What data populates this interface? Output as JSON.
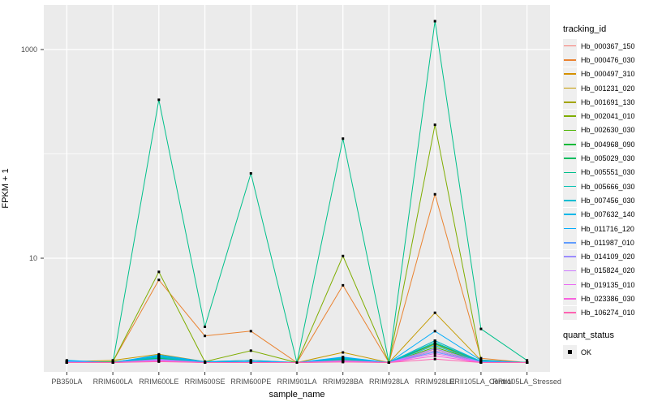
{
  "figure": {
    "panel_bg": "#ebebeb",
    "grid_color": "#ffffff",
    "tick_color": "#333333",
    "axis_text_color": "#4d4d4d",
    "point_color": "#000000"
  },
  "y_axis": {
    "title": "FPKM + 1",
    "tick_labels": [
      "1000",
      "10"
    ],
    "tick_values": [
      1000,
      10
    ],
    "minor_gridline_values": [
      100
    ]
  },
  "x_axis": {
    "title": "sample_name"
  },
  "legend": {
    "tracking_title": "tracking_id",
    "quant_title": "quant_status",
    "quant_items": [
      {
        "label": "OK"
      }
    ]
  },
  "chart_data": {
    "type": "line",
    "title": "",
    "xlabel": "sample_name",
    "ylabel": "FPKM + 1",
    "y_scale": "log10",
    "ylim": [
      1,
      2000
    ],
    "y_ticks_shown": [
      10,
      1000
    ],
    "grid": true,
    "legend_position": "right",
    "point_shape": "filled-square",
    "point_legend": {
      "title": "quant_status",
      "label": "OK"
    },
    "categories": [
      "PB350LA",
      "RRIM600LA",
      "RRIM600LE",
      "RRIM600SE",
      "RRIM600PE",
      "RRIM901LA",
      "RRIM928BA",
      "RRIM928LA",
      "RRIM928LE",
      "RRII105LA_Control",
      "RRII105LA_Stressed"
    ],
    "series": [
      {
        "name": "Hb_000367_150",
        "color": "#F8766D",
        "values": [
          1.02,
          1.0,
          1.1,
          1.0,
          1.01,
          1.0,
          1.06,
          1.0,
          1.35,
          1.02,
          1.0
        ]
      },
      {
        "name": "Hb_000476_030",
        "color": "#EA8331",
        "values": [
          1.0,
          1.02,
          6.2,
          1.8,
          2.0,
          1.0,
          5.5,
          1.0,
          41,
          1.1,
          1.0
        ]
      },
      {
        "name": "Hb_000497_310",
        "color": "#D59100",
        "values": [
          1.01,
          1.0,
          1.12,
          1.0,
          1.02,
          1.0,
          1.1,
          1.0,
          1.5,
          1.02,
          1.0
        ]
      },
      {
        "name": "Hb_001231_020",
        "color": "#C49A00",
        "values": [
          1.02,
          1.05,
          1.2,
          1.02,
          1.05,
          1.0,
          1.25,
          1.0,
          3.0,
          1.05,
          1.0
        ]
      },
      {
        "name": "Hb_001691_130",
        "color": "#A3A500",
        "values": [
          1.0,
          1.01,
          1.15,
          1.0,
          1.02,
          1.0,
          1.1,
          1.0,
          1.62,
          1.02,
          1.0
        ]
      },
      {
        "name": "Hb_002041_010",
        "color": "#7FAD00",
        "values": [
          1.0,
          1.02,
          7.4,
          1.02,
          1.3,
          1.0,
          10.5,
          1.0,
          190,
          1.06,
          1.0
        ]
      },
      {
        "name": "Hb_002630_030",
        "color": "#4CB400",
        "values": [
          1.01,
          1.02,
          1.1,
          1.0,
          1.01,
          1.0,
          1.06,
          1.0,
          1.4,
          1.02,
          1.0
        ]
      },
      {
        "name": "Hb_004968_090",
        "color": "#00BA38",
        "values": [
          1.0,
          1.0,
          1.06,
          1.0,
          1.0,
          1.0,
          1.04,
          1.0,
          1.3,
          1.01,
          1.0
        ]
      },
      {
        "name": "Hb_005029_030",
        "color": "#00BD5F",
        "values": [
          1.01,
          1.0,
          1.1,
          1.01,
          1.02,
          1.0,
          1.08,
          1.0,
          1.52,
          1.03,
          1.0
        ]
      },
      {
        "name": "Hb_005551_030",
        "color": "#00C08B",
        "values": [
          1.04,
          1.0,
          330,
          2.2,
          65,
          1.0,
          140,
          1.0,
          1870,
          2.1,
          1.05
        ]
      },
      {
        "name": "Hb_005666_030",
        "color": "#00C0B2",
        "values": [
          1.02,
          1.0,
          1.12,
          1.0,
          1.02,
          1.0,
          1.08,
          1.0,
          1.56,
          1.02,
          1.0
        ]
      },
      {
        "name": "Hb_007456_030",
        "color": "#00BDD2",
        "values": [
          1.03,
          1.0,
          1.14,
          1.0,
          1.01,
          1.0,
          1.1,
          1.0,
          1.46,
          1.01,
          1.0
        ]
      },
      {
        "name": "Hb_007632_140",
        "color": "#00B7E8",
        "values": [
          1.03,
          1.0,
          1.16,
          1.01,
          1.02,
          1.0,
          1.12,
          1.0,
          1.62,
          1.03,
          1.0
        ]
      },
      {
        "name": "Hb_011716_120",
        "color": "#00ACFC",
        "values": [
          1.05,
          1.0,
          1.18,
          1.02,
          1.05,
          1.0,
          1.13,
          1.0,
          2.0,
          1.05,
          1.0
        ]
      },
      {
        "name": "Hb_011987_010",
        "color": "#619CFF",
        "values": [
          1.02,
          1.0,
          1.08,
          1.0,
          1.01,
          1.0,
          1.05,
          1.0,
          1.26,
          1.01,
          1.0
        ]
      },
      {
        "name": "Hb_014109_020",
        "color": "#9C8DFF",
        "values": [
          1.01,
          1.0,
          1.06,
          1.0,
          1.0,
          1.0,
          1.04,
          1.0,
          1.36,
          1.01,
          1.0
        ]
      },
      {
        "name": "Hb_015824_020",
        "color": "#CD79FF",
        "values": [
          1.0,
          1.0,
          1.05,
          1.0,
          1.0,
          1.0,
          1.03,
          1.0,
          1.3,
          1.0,
          1.0
        ]
      },
      {
        "name": "Hb_019135_010",
        "color": "#EA69F2",
        "values": [
          1.0,
          1.0,
          1.04,
          1.0,
          1.0,
          1.0,
          1.03,
          1.0,
          1.22,
          1.0,
          1.0
        ]
      },
      {
        "name": "Hb_023386_030",
        "color": "#F862DE",
        "values": [
          1.0,
          1.0,
          1.03,
          1.0,
          1.0,
          1.0,
          1.02,
          1.0,
          1.16,
          1.0,
          1.0
        ]
      },
      {
        "name": "Hb_106274_010",
        "color": "#FF64B2",
        "values": [
          1.0,
          1.0,
          1.02,
          1.0,
          1.0,
          1.0,
          1.01,
          1.0,
          1.08,
          1.0,
          1.0
        ]
      }
    ]
  }
}
